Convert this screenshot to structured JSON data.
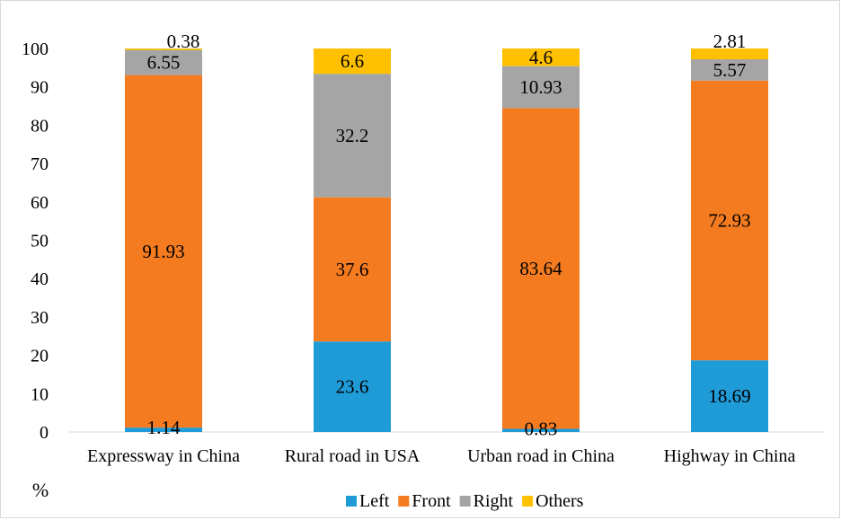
{
  "chart_data": {
    "type": "bar",
    "stacked": true,
    "categories": [
      "Expressway in China",
      "Rural road in USA",
      "Urban road in China",
      "Highway in China"
    ],
    "series": [
      {
        "name": "Left",
        "color": "#1f9bd7",
        "values": [
          1.14,
          23.6,
          0.83,
          18.69
        ]
      },
      {
        "name": "Front",
        "color": "#f47b20",
        "values": [
          91.93,
          37.6,
          83.64,
          72.93
        ]
      },
      {
        "name": "Right",
        "color": "#a5a5a5",
        "values": [
          6.55,
          32.2,
          10.93,
          5.57
        ]
      },
      {
        "name": "Others",
        "color": "#ffc000",
        "values": [
          0.38,
          6.6,
          4.6,
          2.81
        ]
      }
    ],
    "data_labels": [
      [
        "1.14",
        "91.93",
        "6.55",
        "0.38"
      ],
      [
        "23.6",
        "37.6",
        "32.2",
        "6.6"
      ],
      [
        "0.83",
        "83.64",
        "10.93",
        "4.6"
      ],
      [
        "18.69",
        "72.93",
        "5.57",
        "2.81"
      ]
    ],
    "ylim": [
      0,
      100
    ],
    "yticks": [
      "0",
      "10",
      "20",
      "30",
      "40",
      "50",
      "60",
      "70",
      "80",
      "90",
      "100"
    ],
    "ylabel": "%",
    "legend_position": "bottom",
    "grid": false
  }
}
